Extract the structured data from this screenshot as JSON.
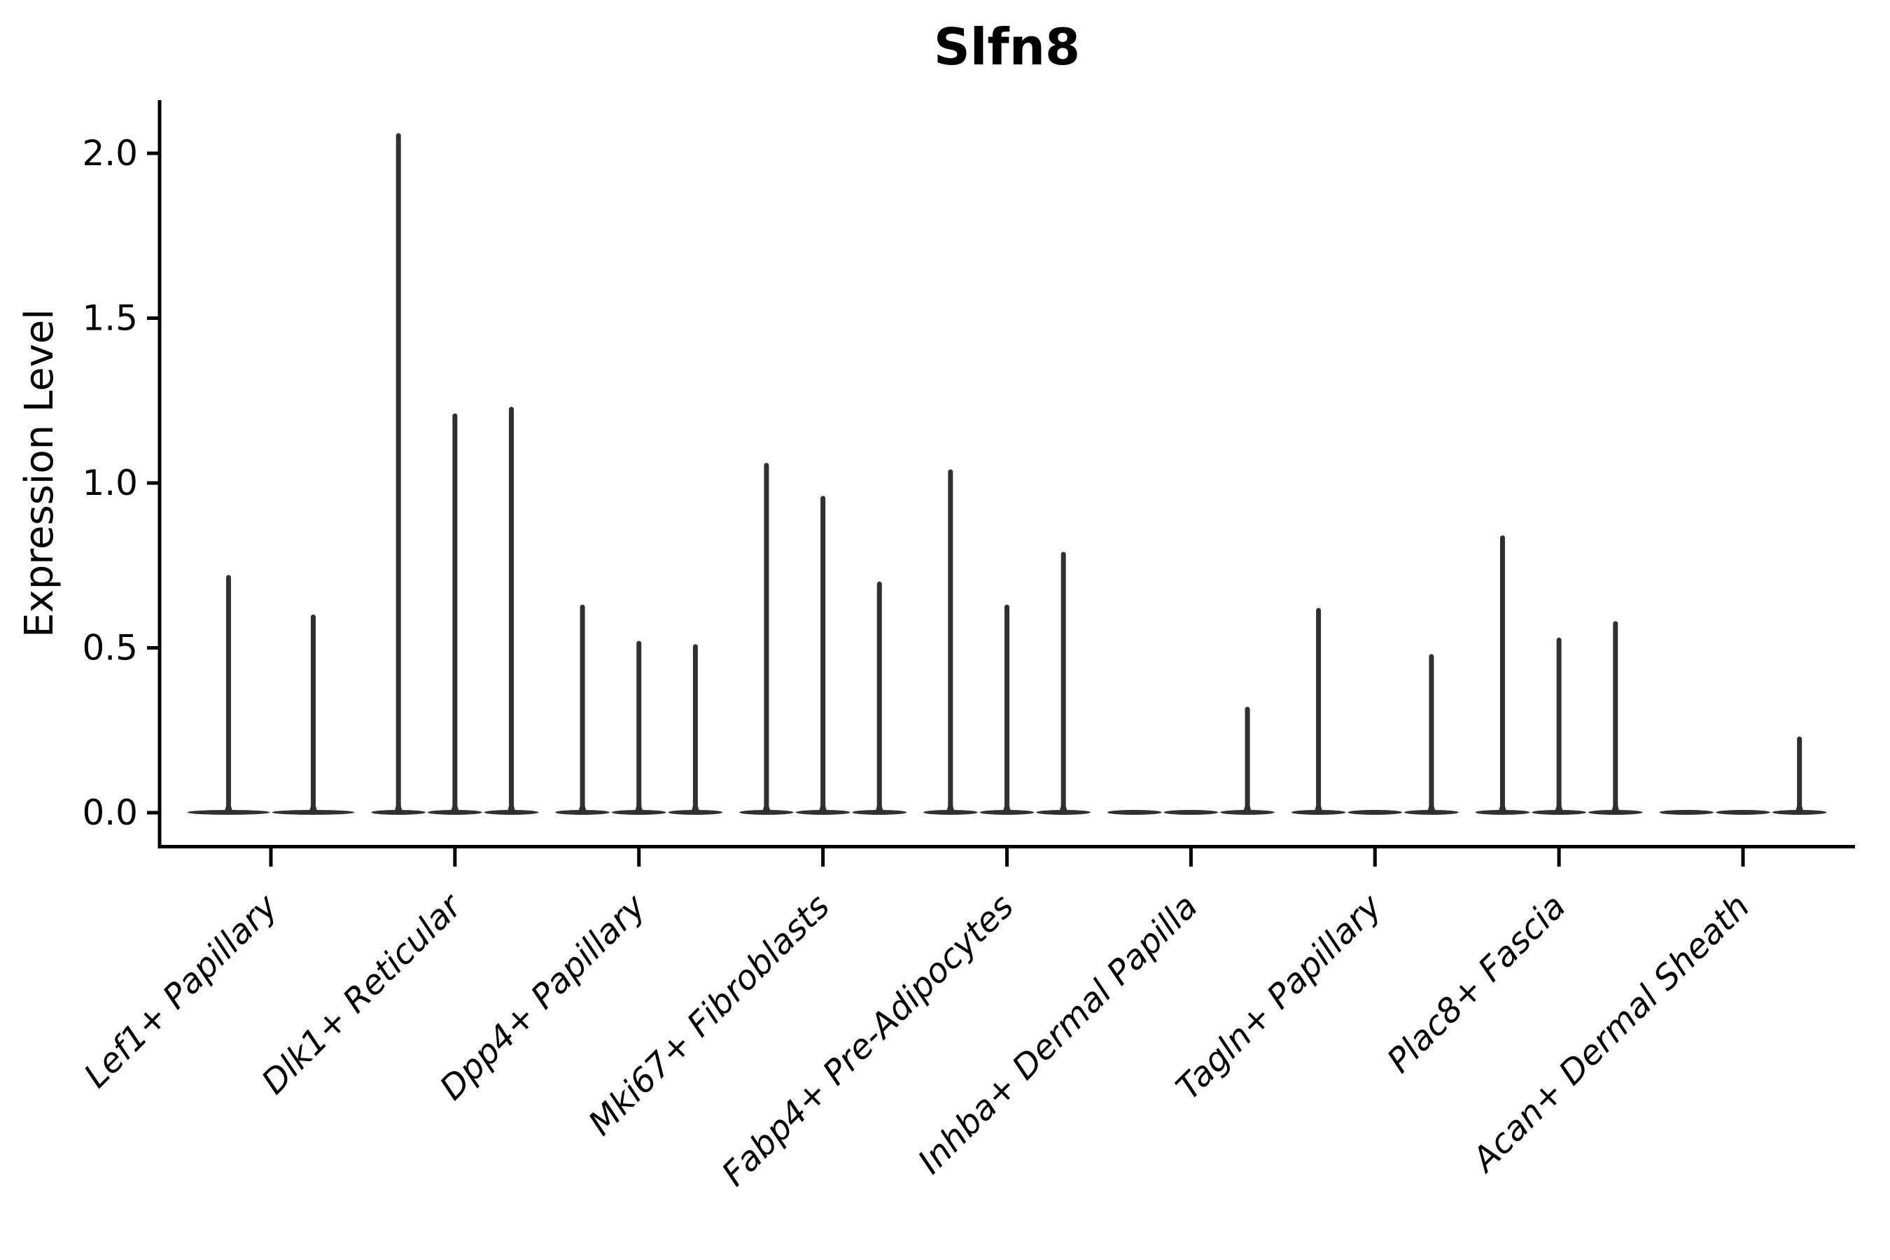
{
  "title": "Slfn8",
  "y_axis": {
    "label": "Expression Level",
    "tick_labels": [
      "2.0",
      "1.5",
      "1.0",
      "0.5",
      "0.0"
    ]
  },
  "chart_data": {
    "type": "violin",
    "title": "Slfn8",
    "xlabel": "",
    "ylabel": "Expression Level",
    "ylim": [
      0,
      2.15
    ],
    "yticks": [
      0.0,
      0.5,
      1.0,
      1.5,
      2.0
    ],
    "grid": false,
    "legend": "none",
    "description": "Single-cell expression violin plot; each category holds thin violins collapsed at 0 with a narrow spike reaching the listed maximum expression value (0 = completely flat violin).",
    "categories": [
      "Lef1+ Papillary",
      "Dlk1+ Reticular",
      "Dpp4+ Papillary",
      "Mki67+ Fibroblasts",
      "Fabp4+ Pre-Adipocytes",
      "Inhba+ Dermal Papilla",
      "Tagln+ Papillary",
      "Plac8+ Fascia",
      "Acan+ Dermal Sheath"
    ],
    "series": [
      {
        "category": "Lef1+ Papillary",
        "violin_peaks": [
          0.72,
          0.6
        ]
      },
      {
        "category": "Dlk1+ Reticular",
        "violin_peaks": [
          2.06,
          1.21,
          1.23
        ]
      },
      {
        "category": "Dpp4+ Papillary",
        "violin_peaks": [
          0.63,
          0.52,
          0.51
        ]
      },
      {
        "category": "Mki67+ Fibroblasts",
        "violin_peaks": [
          1.06,
          0.96,
          0.7
        ]
      },
      {
        "category": "Fabp4+ Pre-Adipocytes",
        "violin_peaks": [
          1.04,
          0.63,
          0.79
        ]
      },
      {
        "category": "Inhba+ Dermal Papilla",
        "violin_peaks": [
          0,
          0,
          0.32
        ]
      },
      {
        "category": "Tagln+ Papillary",
        "violin_peaks": [
          0.62,
          0,
          0.48
        ]
      },
      {
        "category": "Plac8+ Fascia",
        "violin_peaks": [
          0.84,
          0.53,
          0.58
        ]
      },
      {
        "category": "Acan+ Dermal Sheath",
        "violin_peaks": [
          0,
          0,
          0.23
        ]
      }
    ],
    "colors": {
      "axis": "#000000",
      "violin": "#303030",
      "text": "#000000",
      "background": "#ffffff"
    }
  }
}
